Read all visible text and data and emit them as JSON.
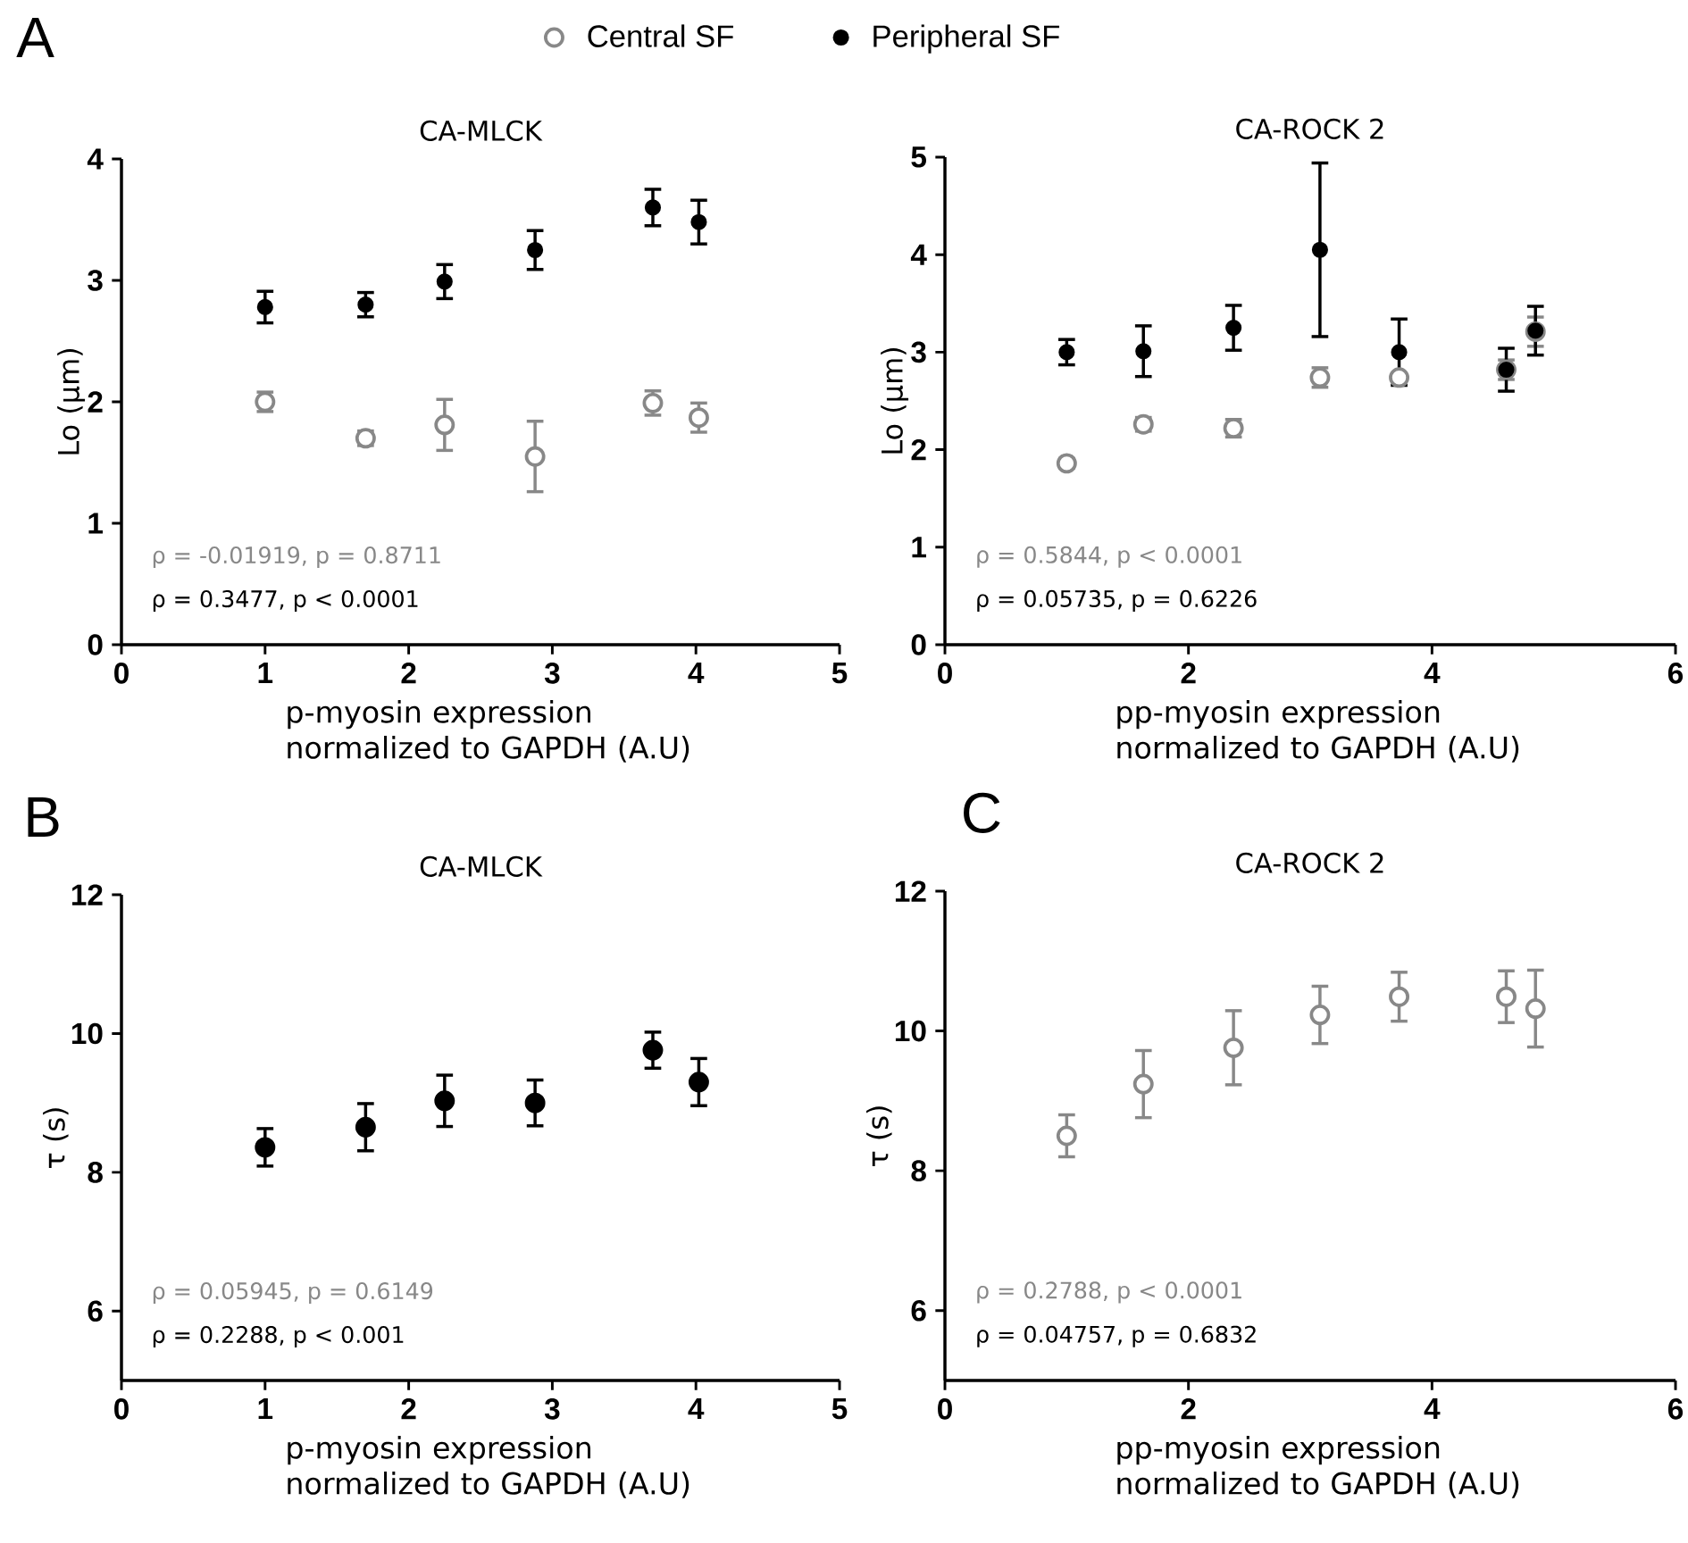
{
  "chart_data": [
    {
      "type": "scatter",
      "title": "CA-MLCK",
      "xlabel": "p-myosin expression normalized to GAPDH (A.U)",
      "ylabel": "Lo (µm)",
      "xlim": [
        0,
        5
      ],
      "xticks": [
        0,
        1,
        2,
        3,
        4,
        5
      ],
      "ylim": [
        0,
        4
      ],
      "yticks": [
        0,
        1,
        2,
        3,
        4
      ],
      "legend": "top",
      "annotations": [
        "A",
        "ρ = -0.01919, p = 0.8711",
        "ρ = 0.3477, p < 0.0001"
      ],
      "series": [
        {
          "name": "Central SF",
          "color": "#888888",
          "x": [
            1,
            1.7,
            2.25,
            2.88,
            3.7,
            4.02
          ],
          "values": [
            2.0,
            1.7,
            1.81,
            1.55,
            1.99,
            1.87
          ],
          "errors": [
            0.08,
            0.06,
            0.21,
            0.29,
            0.1,
            0.12
          ]
        },
        {
          "name": "Peripheral SF",
          "color": "#000000",
          "x": [
            1,
            1.7,
            2.25,
            2.88,
            3.7,
            4.02
          ],
          "values": [
            2.78,
            2.8,
            2.99,
            3.25,
            3.6,
            3.48
          ],
          "errors": [
            0.13,
            0.1,
            0.14,
            0.16,
            0.15,
            0.18
          ]
        }
      ]
    },
    {
      "type": "scatter",
      "title": "CA-ROCK 2",
      "xlabel": "pp-myosin expression normalized to GAPDH (A.U)",
      "ylabel": "Lo (µm)",
      "xlim": [
        0,
        6
      ],
      "xticks": [
        0,
        2,
        4,
        6
      ],
      "ylim": [
        0,
        5
      ],
      "yticks": [
        0,
        1,
        2,
        3,
        4,
        5
      ],
      "annotations": [
        "ρ = 0.5844, p < 0.0001",
        "ρ = 0.05735, p = 0.6226"
      ],
      "series": [
        {
          "color": "#888888",
          "x": [
            1.0,
            1.63,
            2.37,
            3.08,
            3.73,
            4.61,
            4.85
          ],
          "values": [
            1.86,
            2.26,
            2.22,
            2.74,
            2.74,
            2.82,
            3.21
          ],
          "errors": [
            0.05,
            0.07,
            0.09,
            0.1,
            null,
            0.1,
            0.15
          ]
        },
        {
          "color": "#000000",
          "x": [
            1.0,
            1.63,
            2.37,
            3.08,
            3.73,
            4.61,
            4.85
          ],
          "values": [
            3.0,
            3.01,
            3.25,
            4.05,
            3.0,
            2.82,
            3.22
          ],
          "errors": [
            0.13,
            0.26,
            0.23,
            0.89,
            0.34,
            0.22,
            0.25
          ]
        }
      ]
    },
    {
      "type": "scatter",
      "title": "CA-MLCK",
      "xlabel": "p-myosin expression normalized to GAPDH (A.U)",
      "ylabel": "τ (s)",
      "xlim": [
        0,
        5
      ],
      "xticks": [
        0,
        1,
        2,
        3,
        4,
        5
      ],
      "ylim": [
        5,
        12
      ],
      "yticks": [
        6,
        8,
        10,
        12
      ],
      "annotations": [
        "B",
        "ρ = 0.05945, p = 0.6149",
        "ρ = 0.2288, p < 0.001"
      ],
      "series": [
        {
          "color": "#000000",
          "x": [
            1,
            1.7,
            2.25,
            2.88,
            3.7,
            4.02
          ],
          "values": [
            8.36,
            8.65,
            9.03,
            9.0,
            9.76,
            9.3
          ],
          "errors": [
            0.27,
            0.34,
            0.37,
            0.33,
            0.26,
            0.34
          ]
        }
      ]
    },
    {
      "type": "scatter",
      "title": "CA-ROCK 2",
      "xlabel": "pp-myosin expression normalized to GAPDH (A.U)",
      "ylabel": "τ (s)",
      "xlim": [
        0,
        6
      ],
      "xticks": [
        0,
        2,
        4,
        6
      ],
      "ylim": [
        5,
        12
      ],
      "yticks": [
        6,
        8,
        10,
        12
      ],
      "annotations": [
        "C",
        "ρ = 0.2788, p < 0.0001",
        "ρ = 0.04757, p = 0.6832"
      ],
      "series": [
        {
          "color": "#888888",
          "x": [
            1.0,
            1.63,
            2.37,
            3.08,
            3.73,
            4.61,
            4.85
          ],
          "values": [
            8.5,
            9.24,
            9.76,
            10.23,
            10.49,
            10.49,
            10.32
          ],
          "errors": [
            0.3,
            0.48,
            0.53,
            0.41,
            0.35,
            0.37,
            0.55
          ]
        }
      ]
    }
  ]
}
